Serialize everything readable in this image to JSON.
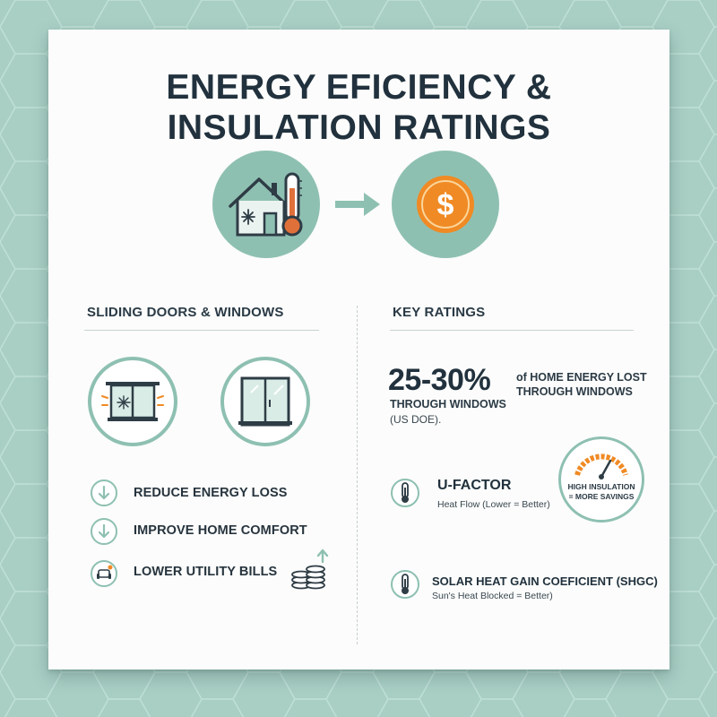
{
  "title": {
    "line1": "ENERGY EFICIENCY &",
    "line2": "INSULATION RATINGS"
  },
  "hero": {
    "left_icon": "house-thermometer-icon",
    "arrow_icon": "arrow-right-icon",
    "right_icon": "dollar-coin-icon"
  },
  "colors": {
    "accent": "#8ec0b2",
    "background": "#a9cfc5",
    "text": "#21313d",
    "orange": "#f08a24",
    "thermometer_red": "#e0703a"
  },
  "left_section": {
    "heading": "SLIDING DOORS & WINDOWS",
    "icons": [
      "insulated-window-icon",
      "sliding-door-icon"
    ],
    "items": [
      {
        "icon": "down-arrow-icon",
        "label": "REDUCE ENERGY LOSS"
      },
      {
        "icon": "down-arrow-icon",
        "label": "IMPROVE HOME COMFORT"
      },
      {
        "icon": "armchair-icon",
        "label": "LOWER UTILITY BILLS"
      }
    ],
    "coins_icon": "coin-stack-icon"
  },
  "right_section": {
    "heading": "KEY RATINGS",
    "stat": {
      "value": "25-30%",
      "caption_right_1": "of HOME ENERGY LOST",
      "caption_right_2": "THROUGH WINDOWS",
      "caption_below": "THROUGH WINDOWS",
      "source": "(US DOE)."
    },
    "gauge": {
      "line1": "HIGH INSULATION",
      "line2": "= MORE SAVINGS"
    },
    "ratings": [
      {
        "icon": "thermometer-icon",
        "title": "U-FACTOR",
        "subtitle": "Heat Flow (Lower = Better)"
      },
      {
        "icon": "thermometer-icon",
        "title": "SOLAR HEAT GAIN COEFICIENT (SHGC)",
        "subtitle": "Sun's Heat Blocked = Better)"
      }
    ]
  }
}
